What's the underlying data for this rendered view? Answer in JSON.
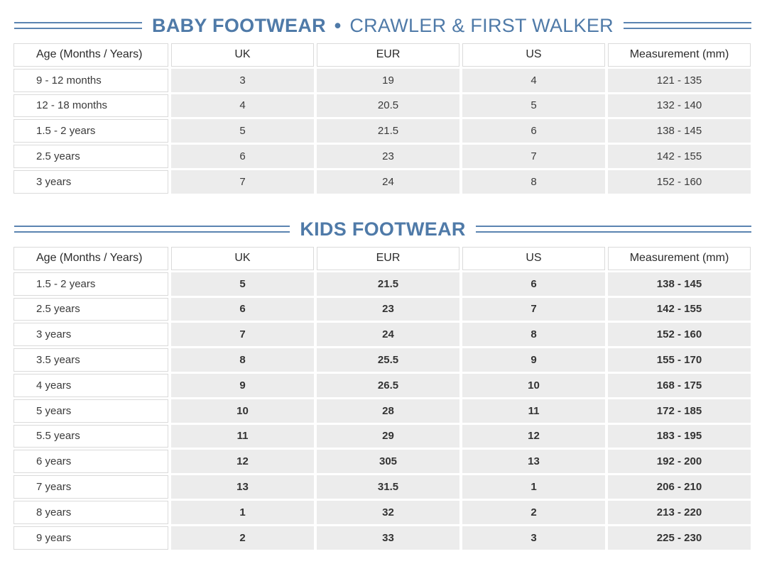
{
  "baby": {
    "title_bold": "BABY FOOTWEAR",
    "title_sep": "•",
    "title_light": "CRAWLER & FIRST WALKER",
    "headers": [
      "Age (Months / Years)",
      "UK",
      "EUR",
      "US",
      "Measurement (mm)"
    ],
    "rows": [
      [
        "9 - 12 months",
        "3",
        "19",
        "4",
        "121 - 135"
      ],
      [
        "12 - 18 months",
        "4",
        "20.5",
        "5",
        "132 - 140"
      ],
      [
        "1.5 - 2 years",
        "5",
        "21.5",
        "6",
        "138 - 145"
      ],
      [
        "2.5 years",
        "6",
        "23",
        "7",
        "142 - 155"
      ],
      [
        "3 years",
        "7",
        "24",
        "8",
        "152 - 160"
      ]
    ]
  },
  "kids": {
    "title_bold": "KIDS FOOTWEAR",
    "headers": [
      "Age (Months / Years)",
      "UK",
      "EUR",
      "US",
      "Measurement (mm)"
    ],
    "rows": [
      [
        "1.5 - 2 years",
        "5",
        "21.5",
        "6",
        "138 - 145"
      ],
      [
        "2.5 years",
        "6",
        "23",
        "7",
        "142 - 155"
      ],
      [
        "3 years",
        "7",
        "24",
        "8",
        "152 - 160"
      ],
      [
        "3.5 years",
        "8",
        "25.5",
        "9",
        "155 - 170"
      ],
      [
        "4 years",
        "9",
        "26.5",
        "10",
        "168 - 175"
      ],
      [
        "5 years",
        "10",
        "28",
        "11",
        "172 - 185"
      ],
      [
        "5.5 years",
        "11",
        "29",
        "12",
        "183 - 195"
      ],
      [
        "6 years",
        "12",
        "305",
        "13",
        "192 - 200"
      ],
      [
        "7 years",
        "13",
        "31.5",
        "1",
        "206 - 210"
      ],
      [
        "8 years",
        "1",
        "32",
        "2",
        "213 - 220"
      ],
      [
        "9 years",
        "2",
        "33",
        "3",
        "225 - 230"
      ]
    ]
  }
}
